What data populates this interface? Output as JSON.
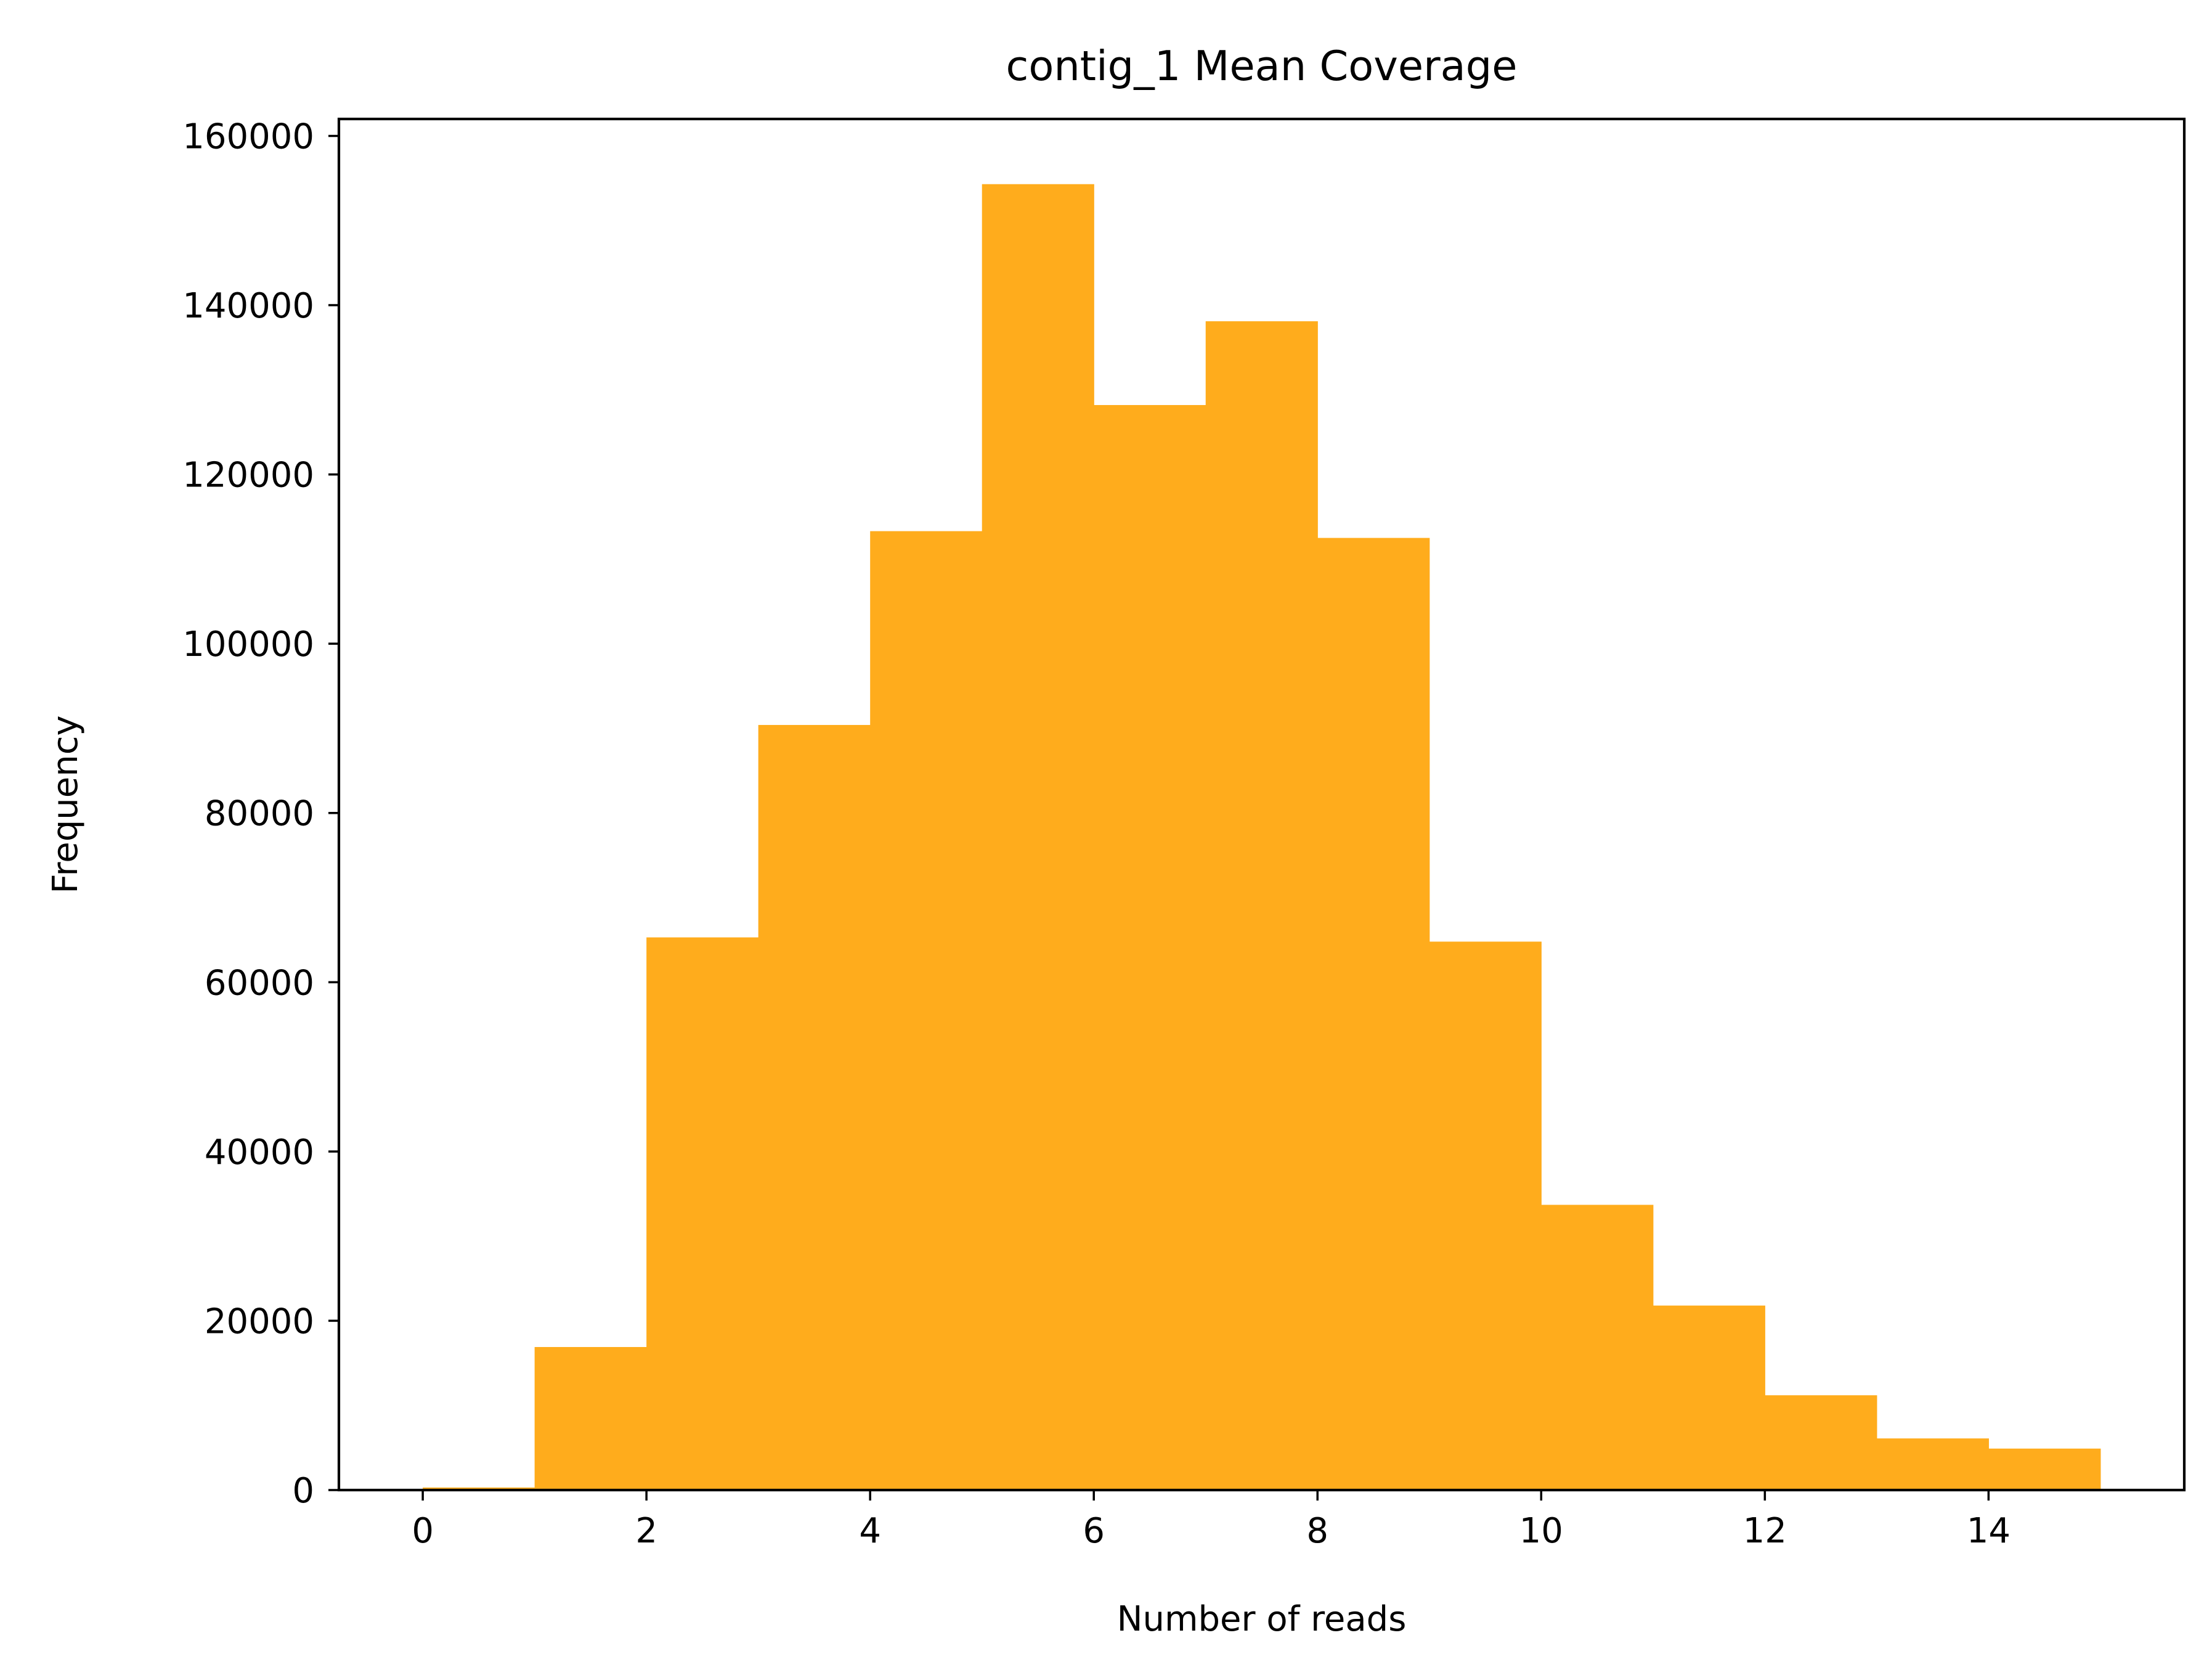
{
  "chart_data": {
    "type": "bar",
    "title": "contig_1 Mean Coverage",
    "xlabel": "Number of reads",
    "ylabel": "Frequency",
    "bin_edges": [
      0,
      1,
      2,
      3,
      4,
      5,
      6,
      7,
      8,
      9,
      10,
      11,
      12,
      13,
      14,
      15
    ],
    "values": [
      300,
      16900,
      65300,
      90400,
      113300,
      154300,
      128200,
      138100,
      112500,
      64800,
      33700,
      21800,
      11200,
      6100,
      4900
    ],
    "xlim": [
      -0.75,
      15.75
    ],
    "ylim": [
      0,
      162000
    ],
    "xticks": [
      0,
      2,
      4,
      6,
      8,
      10,
      12,
      14
    ],
    "yticks": [
      0,
      20000,
      40000,
      60000,
      80000,
      100000,
      120000,
      140000,
      160000
    ],
    "bar_color": "#FFAC1C",
    "grid": false
  }
}
